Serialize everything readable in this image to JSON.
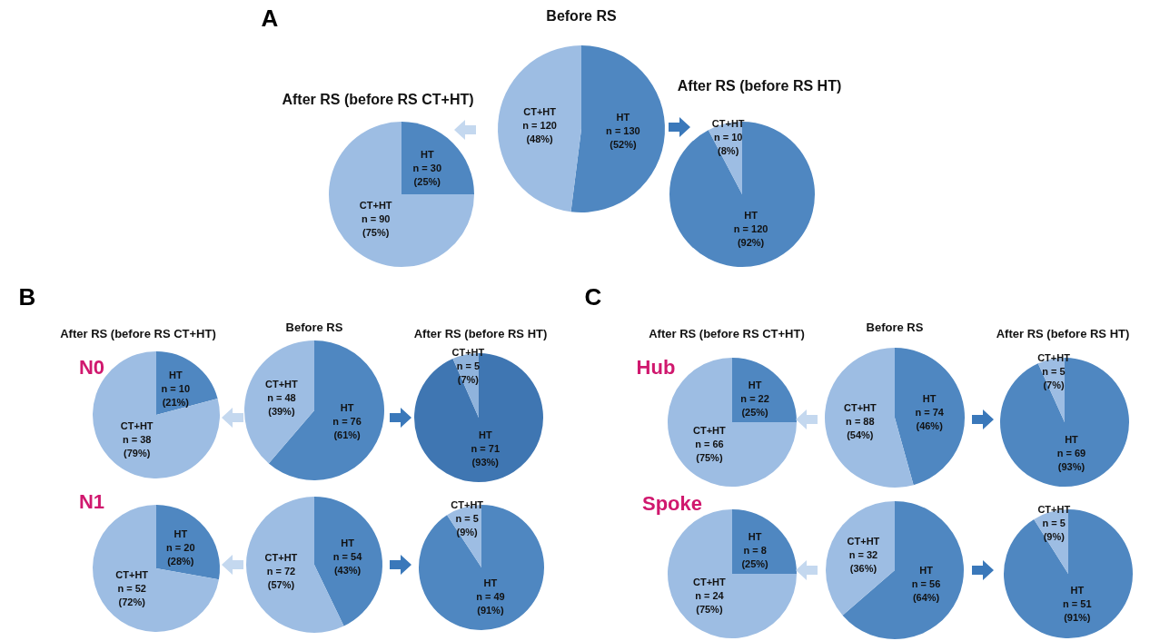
{
  "chart_data": [
    {
      "type": "pie",
      "title": "After RS (before RS CT+HT)",
      "categories": [
        "HT",
        "CT+HT"
      ],
      "values": [
        30,
        90
      ],
      "colors": [
        "#4f87c1",
        "#9dbde3"
      ],
      "value_labels": [
        "n = 30 (25%)",
        "n = 90 (75%)"
      ],
      "annotations": [
        "A"
      ]
    },
    {
      "type": "pie",
      "title": "Before RS",
      "categories": [
        "HT",
        "CT+HT"
      ],
      "values": [
        130,
        120
      ],
      "colors": [
        "#4f87c1",
        "#9dbde3"
      ],
      "value_labels": [
        "n = 130 (52%)",
        "n = 120 (48%)"
      ]
    },
    {
      "type": "pie",
      "title": "After RS (before RS HT)",
      "categories": [
        "HT",
        "CT+HT"
      ],
      "values": [
        120,
        10
      ],
      "colors": [
        "#4f87c1",
        "#9dbde3"
      ],
      "value_labels": [
        "n = 120 (92%)",
        "n = 10 (8%)"
      ]
    },
    {
      "type": "pie",
      "title": "After RS (before RS  CT+HT)",
      "categories": [
        "HT",
        "CT+HT"
      ],
      "values": [
        10,
        38
      ],
      "colors": [
        "#4f87c1",
        "#9dbde3"
      ],
      "value_labels": [
        "n = 10 (21%)",
        "n = 38 (79%)"
      ],
      "annotations": [
        "B",
        "N0"
      ]
    },
    {
      "type": "pie",
      "title": "Before RS",
      "categories": [
        "HT",
        "CT+HT"
      ],
      "values": [
        76,
        48
      ],
      "colors": [
        "#4f87c1",
        "#9dbde3"
      ],
      "value_labels": [
        "n = 76 (61%)",
        "n = 48 (39%)"
      ]
    },
    {
      "type": "pie",
      "title": "After RS (before RS HT)",
      "categories": [
        "HT",
        "CT+HT"
      ],
      "values": [
        71,
        5
      ],
      "colors": [
        "#3f76b2",
        "#8fb3dc"
      ],
      "value_labels": [
        "n = 71 (93%)",
        "n = 5 (7%)"
      ]
    },
    {
      "type": "pie",
      "categories": [
        "HT",
        "CT+HT"
      ],
      "values": [
        20,
        52
      ],
      "colors": [
        "#4f87c1",
        "#9dbde3"
      ],
      "value_labels": [
        "n = 20 (28%)",
        "n = 52 (72%)"
      ],
      "annotations": [
        "N1"
      ]
    },
    {
      "type": "pie",
      "categories": [
        "HT",
        "CT+HT"
      ],
      "values": [
        54,
        72
      ],
      "colors": [
        "#4f87c1",
        "#9dbde3"
      ],
      "value_labels": [
        "n = 54 (43%)",
        "n = 72 (57%)"
      ]
    },
    {
      "type": "pie",
      "categories": [
        "HT",
        "CT+HT"
      ],
      "values": [
        49,
        5
      ],
      "colors": [
        "#4f87c1",
        "#9dbde3"
      ],
      "value_labels": [
        "n = 49 (91%)",
        "n = 5 (9%)"
      ]
    },
    {
      "type": "pie",
      "title": "After RS (before RS CT+HT)",
      "categories": [
        "HT",
        "CT+HT"
      ],
      "values": [
        22,
        66
      ],
      "colors": [
        "#4f87c1",
        "#9dbde3"
      ],
      "value_labels": [
        "n = 22 (25%)",
        "n = 66 (75%)"
      ],
      "annotations": [
        "C",
        "Hub"
      ]
    },
    {
      "type": "pie",
      "title": "Before RS",
      "categories": [
        "HT",
        "CT+HT"
      ],
      "values": [
        74,
        88
      ],
      "colors": [
        "#4f87c1",
        "#9dbde3"
      ],
      "value_labels": [
        "n = 74 (46%)",
        "n = 88 (54%)"
      ]
    },
    {
      "type": "pie",
      "title": "After RS (before RS HT)",
      "categories": [
        "HT",
        "CT+HT"
      ],
      "values": [
        69,
        5
      ],
      "colors": [
        "#4f87c1",
        "#9dbde3"
      ],
      "value_labels": [
        "n = 69 (93%)",
        "n = 5 (7%)"
      ]
    },
    {
      "type": "pie",
      "categories": [
        "HT",
        "CT+HT"
      ],
      "values": [
        8,
        24
      ],
      "colors": [
        "#4f87c1",
        "#9dbde3"
      ],
      "value_labels": [
        "n = 8 (25%)",
        "n = 24 (75%)"
      ],
      "annotations": [
        "Spoke"
      ]
    },
    {
      "type": "pie",
      "categories": [
        "HT",
        "CT+HT"
      ],
      "values": [
        56,
        32
      ],
      "colors": [
        "#4f87c1",
        "#9dbde3"
      ],
      "value_labels": [
        "n = 56 (64%)",
        "n = 32 (36%)"
      ]
    },
    {
      "type": "pie",
      "categories": [
        "HT",
        "CT+HT"
      ],
      "values": [
        51,
        5
      ],
      "colors": [
        "#4f87c1",
        "#9dbde3"
      ],
      "value_labels": [
        "n = 51 (91%)",
        "n = 5 (9%)"
      ]
    }
  ]
}
